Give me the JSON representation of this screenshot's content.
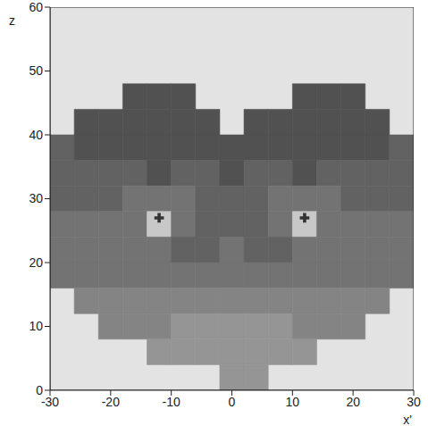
{
  "chart_data": {
    "type": "heatmap",
    "x_label": "x'",
    "y_label": "z",
    "xlim": [
      -30,
      30
    ],
    "ylim": [
      0,
      60
    ],
    "xticks": [
      -30,
      -20,
      -10,
      0,
      10,
      20,
      30
    ],
    "yticks": [
      0,
      10,
      20,
      30,
      40,
      50,
      60
    ],
    "tick_labels": true,
    "x": [
      -28,
      -24,
      -20,
      -16,
      -12,
      -8,
      -4,
      0,
      4,
      8,
      12,
      16,
      20,
      24,
      28
    ],
    "y": [
      58,
      54,
      50,
      46,
      42,
      38,
      34,
      30,
      26,
      22,
      18,
      14,
      10,
      6,
      2
    ],
    "cells": [
      [
        null,
        null,
        null,
        null,
        null,
        null,
        null,
        null,
        null,
        null,
        null,
        null,
        null,
        null,
        null
      ],
      [
        null,
        null,
        null,
        null,
        null,
        null,
        null,
        null,
        null,
        null,
        null,
        null,
        null,
        null,
        null
      ],
      [
        null,
        null,
        null,
        null,
        null,
        null,
        null,
        null,
        null,
        null,
        null,
        null,
        null,
        null,
        null
      ],
      [
        null,
        null,
        null,
        7,
        7,
        7,
        null,
        null,
        null,
        null,
        7,
        7,
        7,
        null,
        null
      ],
      [
        null,
        7,
        7,
        7,
        7,
        7,
        7,
        null,
        7,
        7,
        7,
        7,
        7,
        7,
        null
      ],
      [
        6,
        7,
        7,
        7,
        7,
        7,
        7,
        7,
        7,
        7,
        7,
        7,
        7,
        7,
        6
      ],
      [
        6,
        6,
        6,
        6,
        7,
        6,
        6,
        7,
        6,
        6,
        7,
        6,
        6,
        6,
        6
      ],
      [
        6,
        6,
        6,
        5,
        5,
        5,
        6,
        6,
        6,
        5,
        5,
        5,
        6,
        6,
        6
      ],
      [
        5,
        5,
        5,
        5,
        0,
        5,
        6,
        6,
        6,
        5,
        0,
        5,
        5,
        5,
        5
      ],
      [
        5,
        5,
        5,
        5,
        5,
        6,
        6,
        5,
        6,
        6,
        5,
        5,
        5,
        5,
        5
      ],
      [
        5,
        5,
        5,
        5,
        5,
        5,
        5,
        5,
        5,
        5,
        5,
        5,
        5,
        5,
        5
      ],
      [
        null,
        4,
        4,
        4,
        4,
        4,
        4,
        4,
        4,
        4,
        4,
        4,
        4,
        4,
        null
      ],
      [
        null,
        null,
        4,
        4,
        4,
        3,
        3,
        3,
        3,
        3,
        4,
        4,
        4,
        null,
        null
      ],
      [
        null,
        null,
        null,
        null,
        3,
        3,
        3,
        3,
        3,
        3,
        3,
        null,
        null,
        null,
        null
      ],
      [
        null,
        null,
        null,
        null,
        null,
        null,
        null,
        3,
        3,
        null,
        null,
        null,
        null,
        null,
        null
      ]
    ],
    "points": {
      "x": [
        -12,
        12
      ],
      "y": [
        27,
        27
      ],
      "marker": "cross"
    }
  }
}
